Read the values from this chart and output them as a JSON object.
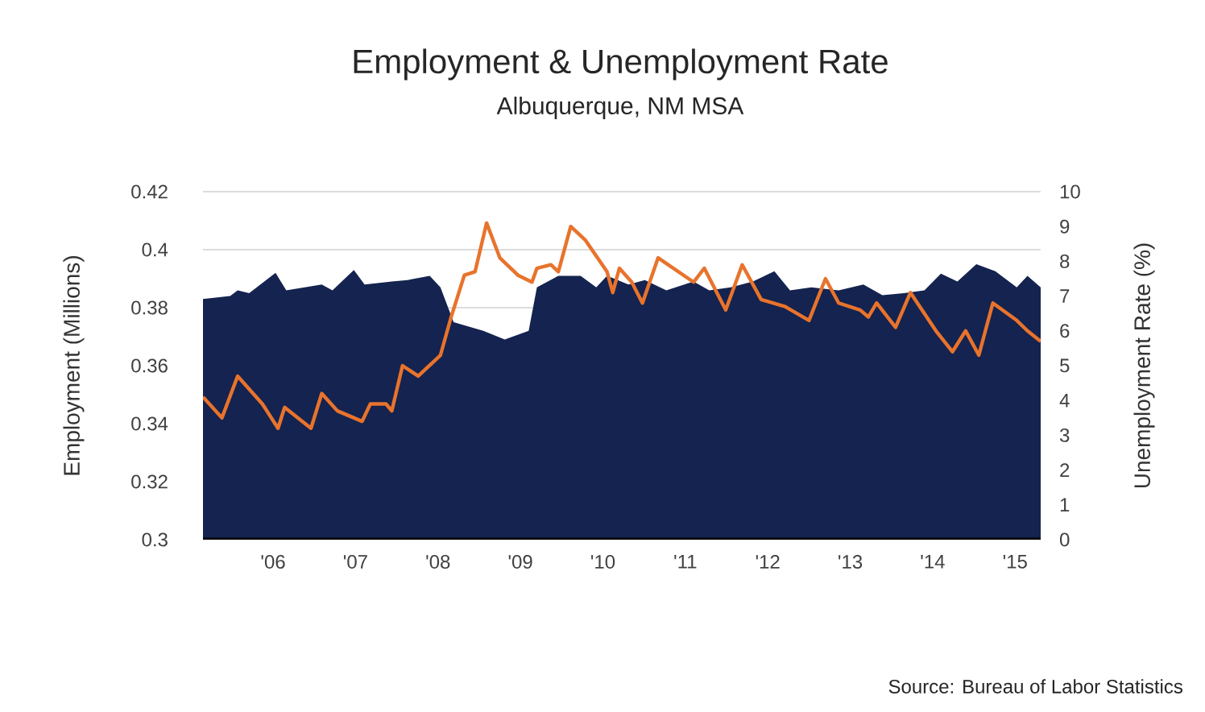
{
  "chart_data": {
    "type": "area",
    "title": "Employment & Unemployment Rate",
    "subtitle": "Albuquerque, NM MSA",
    "ylabel": "Employment (Millions)",
    "y2label": "Unemployment Rate (%)",
    "annotations": [
      "Source: Bureau of Labor Statistics"
    ],
    "xlim": [
      2005.15,
      2015.31
    ],
    "xticks": [
      {
        "value": 2006,
        "label": "'06"
      },
      {
        "value": 2007,
        "label": "'07"
      },
      {
        "value": 2008,
        "label": "'08"
      },
      {
        "value": 2009,
        "label": "'09"
      },
      {
        "value": 2010,
        "label": "'10"
      },
      {
        "value": 2011,
        "label": "'11"
      },
      {
        "value": 2012,
        "label": "'12"
      },
      {
        "value": 2013,
        "label": "'13"
      },
      {
        "value": 2014,
        "label": "'14"
      },
      {
        "value": 2015,
        "label": "'15"
      }
    ],
    "ylim": [
      0.3,
      0.42
    ],
    "yticks": [
      0.3,
      0.32,
      0.34,
      0.36,
      0.38,
      0.4,
      0.42
    ],
    "y2lim": [
      0,
      10
    ],
    "y2ticks": [
      0,
      1,
      2,
      3,
      4,
      5,
      6,
      7,
      8,
      9,
      10
    ],
    "grid": "y",
    "legend": false,
    "series": [
      {
        "color": "#14234f",
        "x": [
          2005.15,
          2005.48,
          2005.57,
          2005.71,
          2006.03,
          2006.16,
          2006.59,
          2006.72,
          2006.98,
          2007.11,
          2007.44,
          2007.63,
          2007.9,
          2008.03,
          2008.19,
          2008.55,
          2008.81,
          2009.1,
          2009.2,
          2009.46,
          2009.73,
          2009.92,
          2010.05,
          2010.31,
          2010.51,
          2010.77,
          2011.1,
          2011.29,
          2011.55,
          2011.82,
          2012.08,
          2012.27,
          2012.53,
          2012.86,
          2013.16,
          2013.39,
          2013.65,
          2013.9,
          2014.1,
          2014.3,
          2014.53,
          2014.76,
          2015.02,
          2015.15,
          2015.31
        ],
        "values": [
          0.383,
          0.384,
          0.386,
          0.385,
          0.392,
          0.386,
          0.388,
          0.386,
          0.393,
          0.388,
          0.389,
          0.3895,
          0.391,
          0.387,
          0.375,
          0.372,
          0.369,
          0.372,
          0.387,
          0.391,
          0.391,
          0.387,
          0.391,
          0.388,
          0.3895,
          0.386,
          0.389,
          0.386,
          0.387,
          0.389,
          0.3926,
          0.386,
          0.387,
          0.386,
          0.388,
          0.3843,
          0.385,
          0.386,
          0.3917,
          0.389,
          0.395,
          0.3926,
          0.387,
          0.391,
          0.387
        ]
      },
      {
        "type": "line",
        "axis": "y2",
        "color": "#e8732c",
        "x": [
          2005.15,
          2005.38,
          2005.57,
          2005.87,
          2006.06,
          2006.14,
          2006.46,
          2006.59,
          2006.78,
          2007.08,
          2007.18,
          2007.37,
          2007.44,
          2007.57,
          2007.76,
          2008.03,
          2008.16,
          2008.32,
          2008.45,
          2008.59,
          2008.75,
          2008.97,
          2009.14,
          2009.2,
          2009.37,
          2009.46,
          2009.61,
          2009.79,
          2010.05,
          2010.12,
          2010.2,
          2010.35,
          2010.48,
          2010.67,
          2011.1,
          2011.23,
          2011.49,
          2011.69,
          2011.92,
          2012.21,
          2012.5,
          2012.7,
          2012.86,
          2013.12,
          2013.22,
          2013.32,
          2013.55,
          2013.73,
          2014.04,
          2014.24,
          2014.4,
          2014.56,
          2014.73,
          2015.02,
          2015.15,
          2015.31
        ],
        "values": [
          4.1,
          3.5,
          4.7,
          3.9,
          3.2,
          3.8,
          3.2,
          4.2,
          3.7,
          3.4,
          3.9,
          3.9,
          3.7,
          5.0,
          4.7,
          5.3,
          6.4,
          7.6,
          7.7,
          9.1,
          8.1,
          7.6,
          7.4,
          7.8,
          7.9,
          7.7,
          9.0,
          8.6,
          7.7,
          7.1,
          7.8,
          7.4,
          6.8,
          8.1,
          7.4,
          7.8,
          6.6,
          7.9,
          6.9,
          6.7,
          6.3,
          7.5,
          6.8,
          6.6,
          6.4,
          6.8,
          6.1,
          7.1,
          6.0,
          5.4,
          6.0,
          5.3,
          6.8,
          6.3,
          6.0,
          5.7
        ]
      }
    ]
  }
}
